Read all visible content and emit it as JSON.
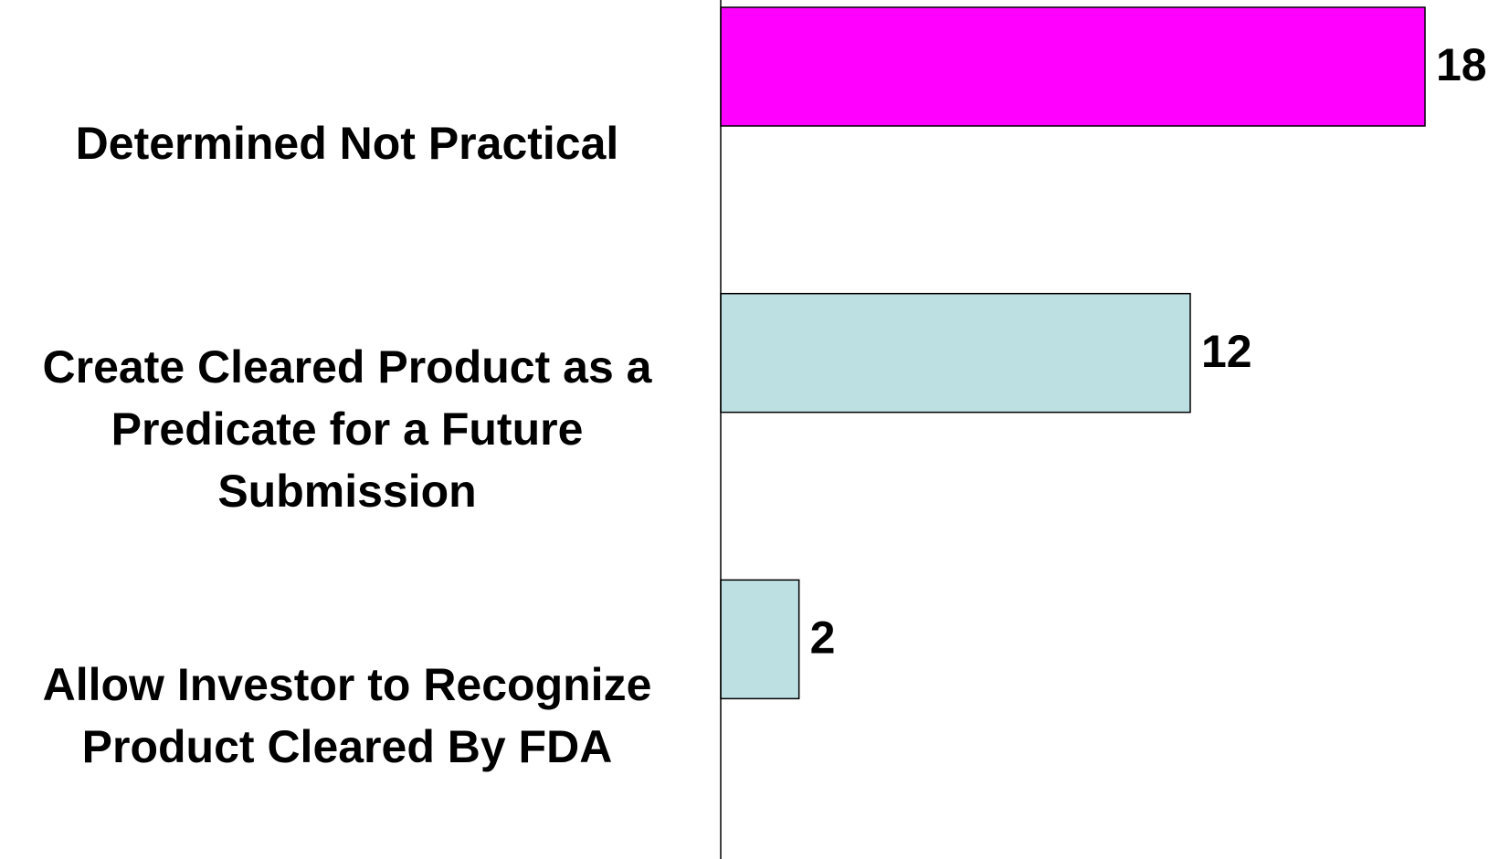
{
  "chart_data": {
    "type": "barh",
    "categories": [
      "Determined Not Practical",
      "Create Cleared Product as a Predicate for a Future Submission",
      "Allow Investor to Recognize Product Cleared By FDA"
    ],
    "values": [
      18,
      12,
      2
    ],
    "colors": [
      "#ff00ff",
      "#bde0e3",
      "#bde0e3"
    ]
  }
}
